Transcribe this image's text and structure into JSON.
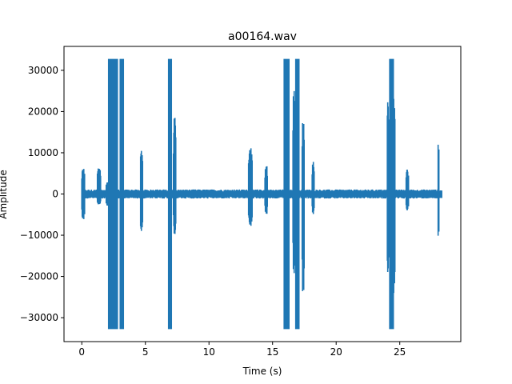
{
  "chart_data": {
    "type": "line",
    "title": "a00164.wav",
    "xlabel": "Time (s)",
    "ylabel": "Amplitude",
    "xlim": [
      -1.4,
      29.8
    ],
    "ylim": [
      -35800,
      35800
    ],
    "xticks": [
      0,
      5,
      10,
      15,
      20,
      25
    ],
    "yticks": [
      -30000,
      -20000,
      -10000,
      0,
      10000,
      20000,
      30000
    ],
    "grid": false,
    "series_color": "#1f77b4",
    "duration_s": 28.3,
    "baseline_band": [
      -1100,
      1100
    ],
    "events": [
      {
        "t_start": 0.0,
        "t_end": 0.25,
        "min": -6500,
        "max": 6500
      },
      {
        "t_start": 1.2,
        "t_end": 1.5,
        "min": -2500,
        "max": 6200
      },
      {
        "t_start": 1.9,
        "t_end": 2.05,
        "min": -3000,
        "max": 3000
      },
      {
        "t_start": 2.1,
        "t_end": 2.35,
        "min": -32768,
        "max": 32767
      },
      {
        "t_start": 2.35,
        "t_end": 2.6,
        "min": -32768,
        "max": 32767
      },
      {
        "t_start": 2.6,
        "t_end": 2.8,
        "min": -32768,
        "max": 32767
      },
      {
        "t_start": 3.0,
        "t_end": 3.3,
        "min": -32768,
        "max": 32767
      },
      {
        "t_start": 4.6,
        "t_end": 4.8,
        "min": -9000,
        "max": 10500
      },
      {
        "t_start": 6.8,
        "t_end": 7.05,
        "min": -32768,
        "max": 32767
      },
      {
        "t_start": 7.2,
        "t_end": 7.4,
        "min": -11000,
        "max": 21000
      },
      {
        "t_start": 13.1,
        "t_end": 13.4,
        "min": -8000,
        "max": 11500
      },
      {
        "t_start": 14.4,
        "t_end": 14.6,
        "min": -5000,
        "max": 7000
      },
      {
        "t_start": 15.9,
        "t_end": 16.3,
        "min": -32768,
        "max": 32767
      },
      {
        "t_start": 16.6,
        "t_end": 16.8,
        "min": -20000,
        "max": 26000
      },
      {
        "t_start": 16.8,
        "t_end": 17.1,
        "min": -32768,
        "max": 32767
      },
      {
        "t_start": 17.3,
        "t_end": 17.5,
        "min": -24000,
        "max": 17500
      },
      {
        "t_start": 18.1,
        "t_end": 18.3,
        "min": -5000,
        "max": 8000
      },
      {
        "t_start": 24.0,
        "t_end": 24.15,
        "min": -20000,
        "max": 23500
      },
      {
        "t_start": 24.2,
        "t_end": 24.5,
        "min": -32768,
        "max": 32767
      },
      {
        "t_start": 24.5,
        "t_end": 24.65,
        "min": -26000,
        "max": 25000
      },
      {
        "t_start": 25.5,
        "t_end": 25.7,
        "min": -4000,
        "max": 6000
      },
      {
        "t_start": 28.0,
        "t_end": 28.1,
        "min": -11000,
        "max": 13000
      }
    ]
  }
}
